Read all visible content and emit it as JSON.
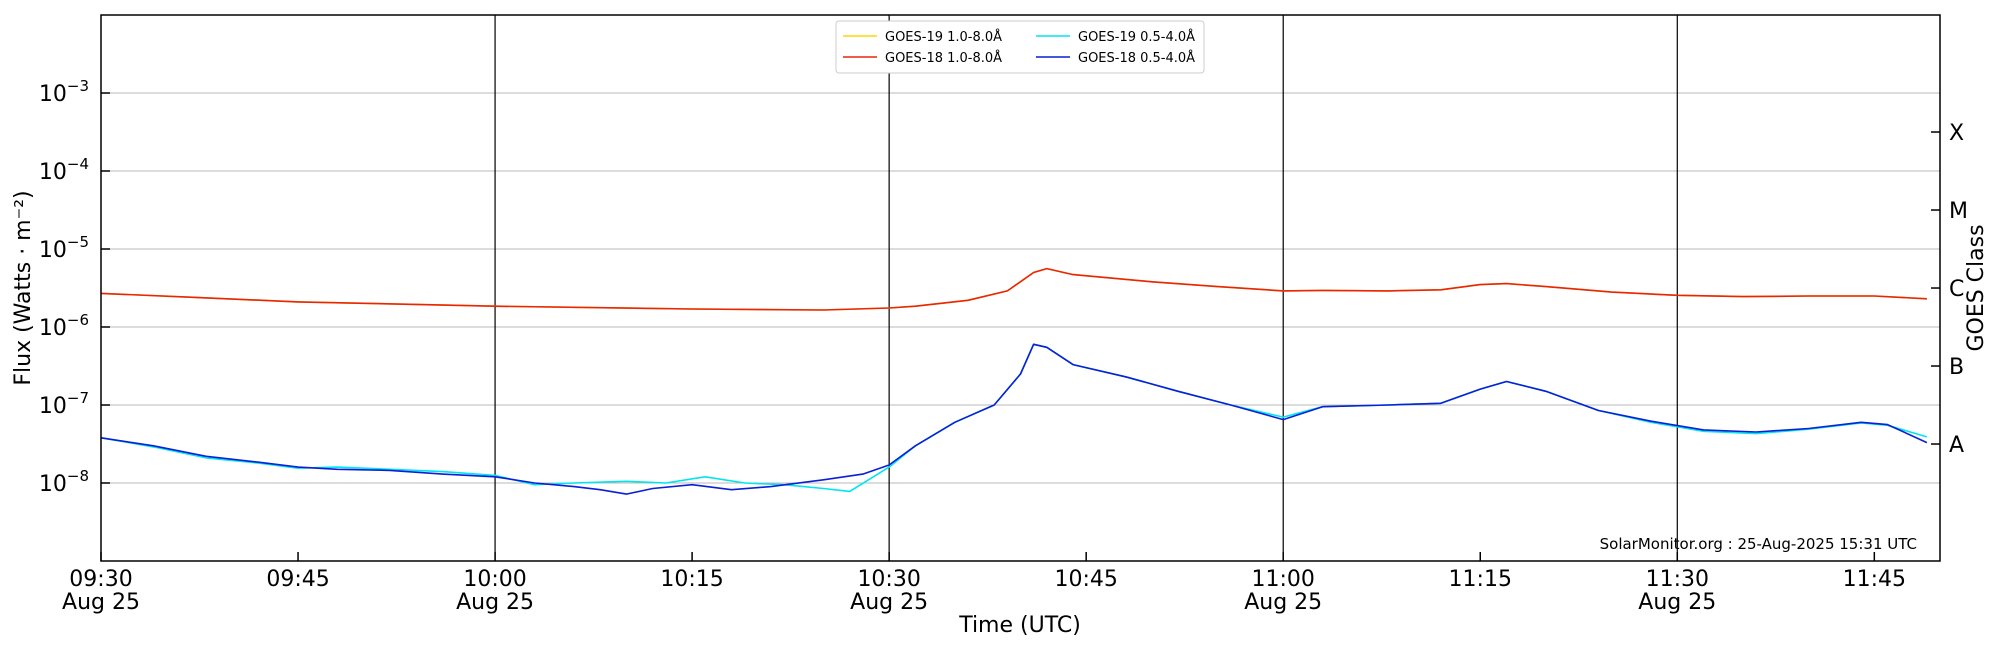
{
  "chart_data": {
    "type": "line",
    "ylabel": "Flux (Watts · m⁻²)",
    "xlabel": "Time (UTC)",
    "y2label": "GOES Class",
    "y_scale": "log",
    "ylim": [
      1e-09,
      0.01
    ],
    "xlim": [
      "2025-08-25 09:30",
      "2025-08-25 11:50"
    ],
    "grid": "horizontal",
    "legend_position": "top-center",
    "footer": "SolarMonitor.org : 25-Aug-2025 15:31 UTC",
    "y_ticks": [
      {
        "value": 1e-08,
        "exp": "-8"
      },
      {
        "value": 1e-07,
        "exp": "-7"
      },
      {
        "value": 1e-06,
        "exp": "-6"
      },
      {
        "value": 1e-05,
        "exp": "-5"
      },
      {
        "value": 0.0001,
        "exp": "-4"
      },
      {
        "value": 0.001,
        "exp": "-3"
      }
    ],
    "y_tick_base": "10",
    "x_ticks": [
      {
        "time": "09:30",
        "label": "09:30",
        "date": "Aug 25"
      },
      {
        "time": "09:45",
        "label": "09:45",
        "date": ""
      },
      {
        "time": "10:00",
        "label": "10:00",
        "date": "Aug 25"
      },
      {
        "time": "10:15",
        "label": "10:15",
        "date": ""
      },
      {
        "time": "10:30",
        "label": "10:30",
        "date": "Aug 25"
      },
      {
        "time": "10:45",
        "label": "10:45",
        "date": ""
      },
      {
        "time": "11:00",
        "label": "11:00",
        "date": "Aug 25"
      },
      {
        "time": "11:15",
        "label": "11:15",
        "date": ""
      },
      {
        "time": "11:30",
        "label": "11:30",
        "date": "Aug 25"
      },
      {
        "time": "11:45",
        "label": "11:45",
        "date": ""
      }
    ],
    "vertical_lines": [
      "10:00",
      "10:30",
      "11:00",
      "11:30"
    ],
    "goes_classes": [
      {
        "label": "A",
        "value": 3.16e-08
      },
      {
        "label": "B",
        "value": 3.16e-07
      },
      {
        "label": "C",
        "value": 3.16e-06
      },
      {
        "label": "M",
        "value": 3.16e-05
      },
      {
        "label": "X",
        "value": 0.000316
      }
    ],
    "legend": [
      {
        "name": "GOES-19 1.0-8.0Å",
        "color": "#ffd700"
      },
      {
        "name": "GOES-19 0.5-4.0Å",
        "color": "#00e5ee"
      },
      {
        "name": "GOES-18 1.0-8.0Å",
        "color": "#e8250c"
      },
      {
        "name": "GOES-18 0.5-4.0Å",
        "color": "#0a1fd6"
      }
    ],
    "series": [
      {
        "name": "GOES-19 1.0-8.0Å",
        "color": "#ffd700",
        "points": [
          [
            "09:30",
            2.7e-06
          ],
          [
            "09:37",
            2.4e-06
          ],
          [
            "09:45",
            2.1e-06
          ],
          [
            "10:00",
            1.85e-06
          ],
          [
            "10:15",
            1.7e-06
          ],
          [
            "10:25",
            1.65e-06
          ],
          [
            "10:30",
            1.75e-06
          ],
          [
            "10:32",
            1.85e-06
          ],
          [
            "10:36",
            2.2e-06
          ],
          [
            "10:39",
            2.9e-06
          ],
          [
            "10:41",
            5e-06
          ],
          [
            "10:42",
            5.6e-06
          ],
          [
            "10:44",
            4.7e-06
          ],
          [
            "10:50",
            3.8e-06
          ],
          [
            "10:55",
            3.3e-06
          ],
          [
            "11:00",
            2.9e-06
          ],
          [
            "11:03",
            2.95e-06
          ],
          [
            "11:08",
            2.9e-06
          ],
          [
            "11:12",
            3e-06
          ],
          [
            "11:15",
            3.5e-06
          ],
          [
            "11:17",
            3.6e-06
          ],
          [
            "11:20",
            3.3e-06
          ],
          [
            "11:25",
            2.8e-06
          ],
          [
            "11:30",
            2.55e-06
          ],
          [
            "11:35",
            2.45e-06
          ],
          [
            "11:40",
            2.5e-06
          ],
          [
            "11:45",
            2.5e-06
          ],
          [
            "11:49",
            2.3e-06
          ]
        ]
      },
      {
        "name": "GOES-18 1.0-8.0Å",
        "color": "#e8250c",
        "points": [
          [
            "09:30",
            2.7e-06
          ],
          [
            "09:37",
            2.4e-06
          ],
          [
            "09:45",
            2.1e-06
          ],
          [
            "10:00",
            1.85e-06
          ],
          [
            "10:15",
            1.7e-06
          ],
          [
            "10:25",
            1.65e-06
          ],
          [
            "10:30",
            1.75e-06
          ],
          [
            "10:32",
            1.85e-06
          ],
          [
            "10:36",
            2.2e-06
          ],
          [
            "10:39",
            2.9e-06
          ],
          [
            "10:41",
            5e-06
          ],
          [
            "10:42",
            5.6e-06
          ],
          [
            "10:44",
            4.7e-06
          ],
          [
            "10:50",
            3.8e-06
          ],
          [
            "10:55",
            3.3e-06
          ],
          [
            "11:00",
            2.9e-06
          ],
          [
            "11:03",
            2.95e-06
          ],
          [
            "11:08",
            2.9e-06
          ],
          [
            "11:12",
            3e-06
          ],
          [
            "11:15",
            3.5e-06
          ],
          [
            "11:17",
            3.6e-06
          ],
          [
            "11:20",
            3.3e-06
          ],
          [
            "11:25",
            2.8e-06
          ],
          [
            "11:30",
            2.55e-06
          ],
          [
            "11:35",
            2.45e-06
          ],
          [
            "11:40",
            2.5e-06
          ],
          [
            "11:45",
            2.5e-06
          ],
          [
            "11:49",
            2.3e-06
          ]
        ]
      },
      {
        "name": "GOES-19 0.5-4.0Å",
        "color": "#00e5ee",
        "points": [
          [
            "09:30",
            3.8e-08
          ],
          [
            "09:34",
            2.9e-08
          ],
          [
            "09:38",
            2.1e-08
          ],
          [
            "09:42",
            1.8e-08
          ],
          [
            "09:45",
            1.55e-08
          ],
          [
            "09:48",
            1.6e-08
          ],
          [
            "09:52",
            1.5e-08
          ],
          [
            "09:56",
            1.4e-08
          ],
          [
            "10:00",
            1.25e-08
          ],
          [
            "10:03",
            9.5e-09
          ],
          [
            "10:06",
            1e-08
          ],
          [
            "10:10",
            1.05e-08
          ],
          [
            "10:13",
            1e-08
          ],
          [
            "10:16",
            1.2e-08
          ],
          [
            "10:19",
            1e-08
          ],
          [
            "10:22",
            9.5e-09
          ],
          [
            "10:25",
            8.5e-09
          ],
          [
            "10:27",
            7.8e-09
          ],
          [
            "10:30",
            1.6e-08
          ],
          [
            "10:32",
            3e-08
          ],
          [
            "10:35",
            6e-08
          ],
          [
            "10:38",
            1e-07
          ],
          [
            "10:40",
            2.5e-07
          ],
          [
            "10:41",
            6e-07
          ],
          [
            "10:42",
            5.5e-07
          ],
          [
            "10:44",
            3.3e-07
          ],
          [
            "10:48",
            2.3e-07
          ],
          [
            "10:52",
            1.5e-07
          ],
          [
            "10:56",
            1e-07
          ],
          [
            "11:00",
            7e-08
          ],
          [
            "11:03",
            9.5e-08
          ],
          [
            "11:08",
            1e-07
          ],
          [
            "11:12",
            1.05e-07
          ],
          [
            "11:15",
            1.6e-07
          ],
          [
            "11:17",
            2e-07
          ],
          [
            "11:20",
            1.5e-07
          ],
          [
            "11:24",
            8.5e-08
          ],
          [
            "11:28",
            6e-08
          ],
          [
            "11:32",
            4.6e-08
          ],
          [
            "11:36",
            4.3e-08
          ],
          [
            "11:40",
            4.9e-08
          ],
          [
            "11:44",
            5.9e-08
          ],
          [
            "11:46",
            5.5e-08
          ],
          [
            "11:49",
            3.9e-08
          ]
        ]
      },
      {
        "name": "GOES-18 0.5-4.0Å",
        "color": "#0a1fd6",
        "points": [
          [
            "09:30",
            3.8e-08
          ],
          [
            "09:34",
            3e-08
          ],
          [
            "09:38",
            2.2e-08
          ],
          [
            "09:42",
            1.85e-08
          ],
          [
            "09:45",
            1.6e-08
          ],
          [
            "09:48",
            1.5e-08
          ],
          [
            "09:52",
            1.45e-08
          ],
          [
            "09:56",
            1.3e-08
          ],
          [
            "10:00",
            1.2e-08
          ],
          [
            "10:03",
            1e-08
          ],
          [
            "10:06",
            9e-09
          ],
          [
            "10:08",
            8.2e-09
          ],
          [
            "10:10",
            7.2e-09
          ],
          [
            "10:12",
            8.5e-09
          ],
          [
            "10:15",
            9.5e-09
          ],
          [
            "10:18",
            8.2e-09
          ],
          [
            "10:21",
            9e-09
          ],
          [
            "10:25",
            1.1e-08
          ],
          [
            "10:28",
            1.3e-08
          ],
          [
            "10:30",
            1.7e-08
          ],
          [
            "10:32",
            3e-08
          ],
          [
            "10:35",
            6e-08
          ],
          [
            "10:38",
            1e-07
          ],
          [
            "10:40",
            2.5e-07
          ],
          [
            "10:41",
            6e-07
          ],
          [
            "10:42",
            5.5e-07
          ],
          [
            "10:44",
            3.3e-07
          ],
          [
            "10:48",
            2.3e-07
          ],
          [
            "10:52",
            1.5e-07
          ],
          [
            "10:56",
            1e-07
          ],
          [
            "11:00",
            6.5e-08
          ],
          [
            "11:03",
            9.5e-08
          ],
          [
            "11:08",
            1e-07
          ],
          [
            "11:12",
            1.05e-07
          ],
          [
            "11:15",
            1.6e-07
          ],
          [
            "11:17",
            2e-07
          ],
          [
            "11:20",
            1.5e-07
          ],
          [
            "11:24",
            8.5e-08
          ],
          [
            "11:28",
            6.2e-08
          ],
          [
            "11:32",
            4.8e-08
          ],
          [
            "11:36",
            4.5e-08
          ],
          [
            "11:40",
            5e-08
          ],
          [
            "11:44",
            6e-08
          ],
          [
            "11:46",
            5.6e-08
          ],
          [
            "11:49",
            3.3e-08
          ]
        ]
      }
    ]
  }
}
